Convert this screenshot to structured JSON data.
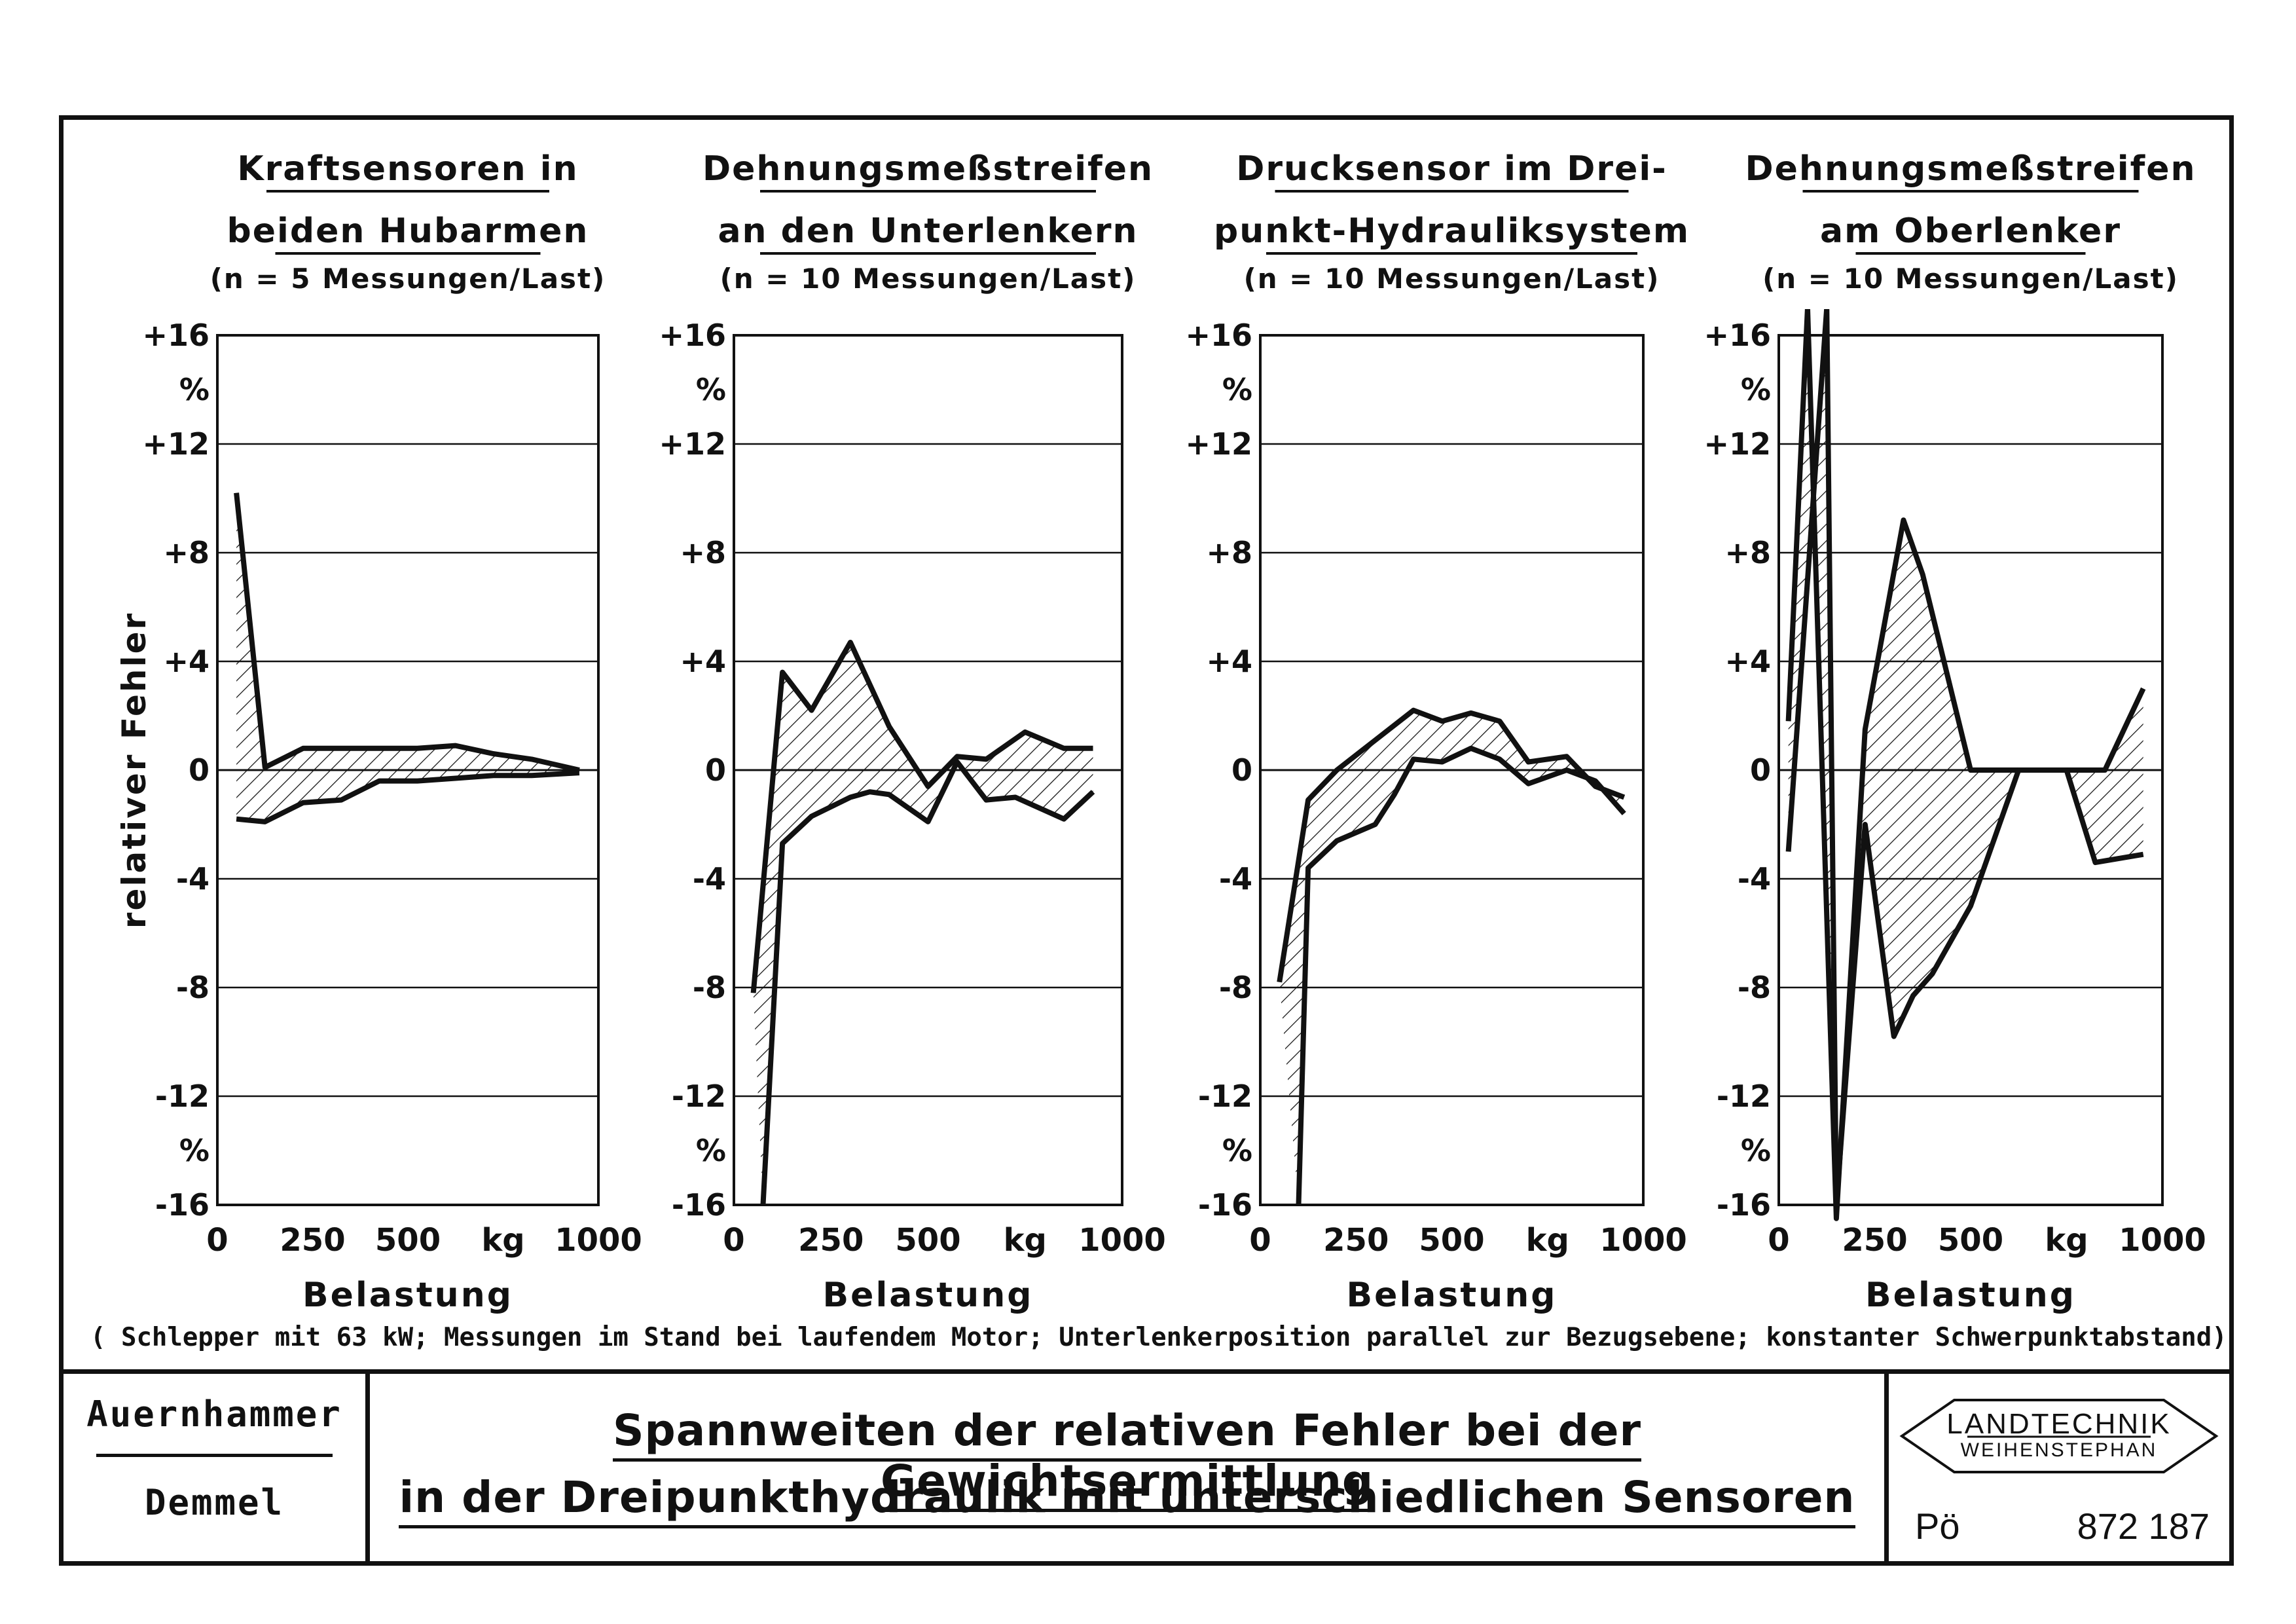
{
  "chart_data": [
    {
      "type": "area",
      "title_lines": [
        "Kraftsensoren in",
        "beiden Hubarmen"
      ],
      "subtitle": "(n = 5 Messungen/Last)",
      "xlabel": "Belastung",
      "ylabel": "relativer Fehler",
      "xlim": [
        0,
        1000
      ],
      "ylim": [
        -16,
        16
      ],
      "x_tick_labels": [
        "0",
        "250",
        "500",
        "kg",
        "1000"
      ],
      "y_tick_labels": [
        "+16",
        "%",
        "+12",
        "+8",
        "+4",
        "0",
        "-4",
        "-8",
        "-12",
        "%",
        "-16"
      ],
      "series": [
        {
          "x": [
            50,
            125,
            225,
            325,
            425,
            525,
            625,
            725,
            825,
            950
          ],
          "values": [
            10.2,
            0.1,
            0.8,
            0.8,
            0.8,
            0.8,
            0.9,
            0.6,
            0.4,
            0.0
          ]
        },
        {
          "x": [
            50,
            125,
            225,
            325,
            425,
            525,
            625,
            725,
            825,
            950
          ],
          "values": [
            -1.8,
            -1.9,
            -1.2,
            -1.1,
            -0.4,
            -0.4,
            -0.3,
            -0.2,
            -0.2,
            -0.1
          ]
        }
      ]
    },
    {
      "type": "area",
      "title_lines": [
        "Dehnungsmeßstreifen",
        "an den Unterlenkern"
      ],
      "subtitle": "(n = 10 Messungen/Last)",
      "xlabel": "Belastung",
      "xlim": [
        0,
        1000
      ],
      "ylim": [
        -16,
        16
      ],
      "x_tick_labels": [
        "0",
        "250",
        "500",
        "kg",
        "1000"
      ],
      "y_tick_labels": [
        "+16",
        "%",
        "+12",
        "+8",
        "+4",
        "0",
        "-4",
        "-8",
        "-12",
        "%",
        "-16"
      ],
      "series": [
        {
          "x": [
            50,
            125,
            200,
            300,
            400,
            500,
            575,
            650,
            750,
            850,
            925
          ],
          "values": [
            -8.2,
            3.6,
            2.2,
            4.7,
            1.6,
            -0.6,
            0.5,
            0.4,
            1.4,
            0.8,
            0.8
          ]
        },
        {
          "x": [
            75,
            125,
            200,
            300,
            350,
            400,
            500,
            575,
            650,
            725,
            850,
            925
          ],
          "values": [
            -16.0,
            -2.7,
            -1.7,
            -1.0,
            -0.8,
            -0.9,
            -1.9,
            0.3,
            -1.1,
            -1.0,
            -1.8,
            -0.8
          ]
        }
      ]
    },
    {
      "type": "area",
      "title_lines": [
        "Drucksensor im Drei-",
        "punkt-Hydrauliksystem"
      ],
      "subtitle": "(n = 10 Messungen/Last)",
      "xlabel": "Belastung",
      "xlim": [
        0,
        1000
      ],
      "ylim": [
        -16,
        16
      ],
      "x_tick_labels": [
        "0",
        "250",
        "500",
        "kg",
        "1000"
      ],
      "y_tick_labels": [
        "+16",
        "%",
        "+12",
        "+8",
        "+4",
        "0",
        "-4",
        "-8",
        "-12",
        "%",
        "-16"
      ],
      "series": [
        {
          "x": [
            50,
            125,
            200,
            300,
            400,
            475,
            550,
            625,
            700,
            800,
            875,
            950
          ],
          "values": [
            -7.8,
            -1.1,
            0.0,
            1.1,
            2.2,
            1.8,
            2.1,
            1.8,
            0.3,
            0.5,
            -0.6,
            -1.0
          ]
        },
        {
          "x": [
            100,
            125,
            200,
            300,
            350,
            400,
            475,
            550,
            625,
            700,
            800,
            875,
            950
          ],
          "values": [
            -16.0,
            -3.6,
            -2.6,
            -2.0,
            -0.9,
            0.4,
            0.3,
            0.8,
            0.4,
            -0.5,
            0.0,
            -0.4,
            -1.6
          ]
        }
      ]
    },
    {
      "type": "area",
      "title_lines": [
        "Dehnungsmeßstreifen",
        "am Oberlenker"
      ],
      "subtitle": "(n = 10 Messungen/Last)",
      "xlabel": "Belastung",
      "xlim": [
        0,
        1000
      ],
      "ylim": [
        -16,
        16
      ],
      "x_tick_labels": [
        "0",
        "250",
        "500",
        "kg",
        "1000"
      ],
      "y_tick_labels": [
        "+16",
        "%",
        "+12",
        "+8",
        "+4",
        "0",
        "-4",
        "-8",
        "-12",
        "%",
        "-16"
      ],
      "series": [
        {
          "x": [
            25,
            75,
            150,
            225,
            325,
            375,
            500,
            650,
            750,
            850,
            950
          ],
          "values": [
            1.8,
            17.0,
            -16.5,
            1.5,
            9.2,
            7.2,
            0.0,
            0.0,
            0.0,
            0.0,
            3.0
          ]
        },
        {
          "x": [
            25,
            125,
            150,
            225,
            300,
            350,
            400,
            500,
            625,
            750,
            825,
            950
          ],
          "values": [
            -3.0,
            17.0,
            -16.0,
            -2.0,
            -9.8,
            -8.3,
            -7.5,
            -5.0,
            0.0,
            0.0,
            -3.4,
            -3.1
          ]
        }
      ]
    }
  ],
  "footnote": "( Schlepper mit 63 kW; Messungen im Stand bei laufendem Motor; Unterlenkerposition parallel zur Bezugsebene; konstanter Schwerpunktabstand)",
  "authors": [
    "Auernhammer",
    "Demmel"
  ],
  "title_lines": [
    "Spannweiten der relativen Fehler bei der Gewichtsermittlung",
    "in der Dreipunkthydraulik mit unterschiedlichen Sensoren"
  ],
  "logo": {
    "line1": "LANDTECHNIK",
    "line2": "WEIHENSTEPHAN",
    "code_left": "Pö",
    "code_right": "872 187"
  },
  "colors": {
    "ink": "#111111",
    "paper": "#ffffff"
  }
}
